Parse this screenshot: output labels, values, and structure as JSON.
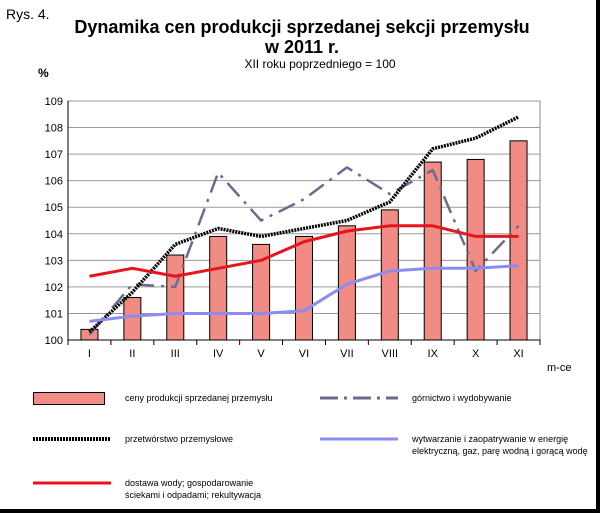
{
  "figure_label": "Rys. 4.",
  "title_line1": "Dynamika cen produkcji sprzedanej sekcji przemysłu",
  "title_line2": "w 2011 r.",
  "subtitle": "XII roku poprzedniego = 100",
  "y_unit": "%",
  "x_unit": "m-ce",
  "chart_data": {
    "type": "bar",
    "title": "Dynamika cen produkcji sprzedanej sekcji przemysłu w 2011 r.",
    "xlabel": "m-ce",
    "ylabel": "%",
    "ylim": [
      100,
      109
    ],
    "yticks": [
      "100",
      "101",
      "102",
      "103",
      "104",
      "105",
      "106",
      "107",
      "108",
      "109"
    ],
    "categories": [
      "I",
      "II",
      "III",
      "IV",
      "V",
      "VI",
      "VII",
      "VIII",
      "IX",
      "X",
      "XI"
    ],
    "grid": true,
    "legend_position": "bottom",
    "series": [
      {
        "name": "ceny produkcji sprzedanej przemysłu",
        "kind": "bar",
        "color": "#f08c84",
        "values": [
          100.4,
          101.6,
          103.2,
          103.9,
          103.6,
          103.9,
          104.3,
          104.9,
          106.7,
          106.8,
          107.5
        ]
      },
      {
        "name": "górnictwo i wydobywanie",
        "kind": "dashdot",
        "color": "#6b6b8f",
        "values": [
          100.2,
          102.1,
          102.0,
          106.3,
          104.5,
          105.3,
          106.5,
          105.5,
          106.4,
          102.6,
          104.3
        ]
      },
      {
        "name": "przetwórstwo przemysłowe",
        "kind": "line-black",
        "color": "#000000",
        "values": [
          100.3,
          101.8,
          103.6,
          104.2,
          103.9,
          104.2,
          104.5,
          105.2,
          107.2,
          107.6,
          108.4
        ]
      },
      {
        "name": "wytwarzanie i zaopatrywanie w energię elektryczną, gaz, parę wodną i gorącą wodę",
        "kind": "line",
        "color": "#8c8cf0",
        "values": [
          100.7,
          100.9,
          101.0,
          101.0,
          101.0,
          101.1,
          102.1,
          102.6,
          102.7,
          102.7,
          102.8
        ]
      },
      {
        "name": "dostawa wody; gospodarowanie ściekami i odpadami; rekultywacja",
        "kind": "line",
        "color": "#e8141c",
        "values": [
          102.4,
          102.7,
          102.4,
          102.7,
          103.0,
          103.7,
          104.1,
          104.3,
          104.3,
          103.9,
          103.9
        ]
      }
    ]
  },
  "legend": {
    "bar": "ceny produkcji sprzedanej przemysłu",
    "mining": "górnictwo i wydobywanie",
    "manufacturing": "przetwórstwo przemysłowe",
    "energy_line1": "wytwarzanie  i zaopatrywanie  w energię",
    "energy_line2": "elektryczną,  gaz, parę wodną i gorącą wodę",
    "water_line1": "dostawa wody; gospodarowanie",
    "water_line2": "ściekami i odpadami; rekultywacja"
  }
}
